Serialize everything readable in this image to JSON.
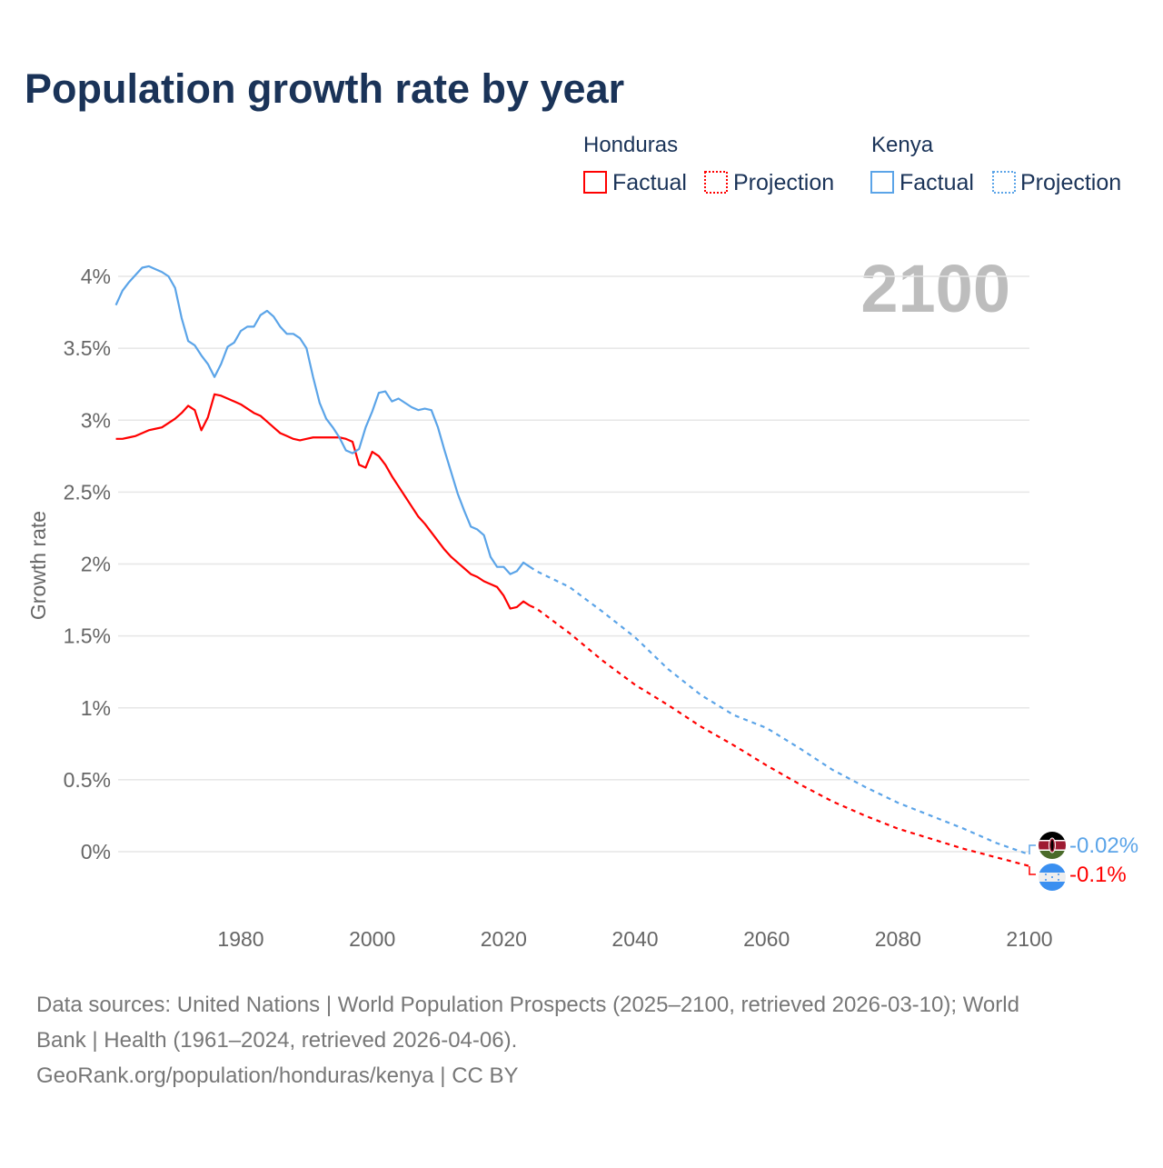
{
  "chart_data": {
    "type": "line",
    "title": "Population growth rate by year",
    "ylabel": "Growth rate",
    "xlabel": "",
    "year_badge": "2100",
    "xlim": [
      1961,
      2100
    ],
    "ylim": [
      -0.5,
      4.2
    ],
    "x_ticks": [
      1980,
      2000,
      2020,
      2040,
      2060,
      2080,
      2100
    ],
    "x_tick_labels": [
      "1980",
      "2000",
      "2020",
      "2040",
      "2060",
      "2080",
      "2100"
    ],
    "y_ticks": [
      0,
      0.5,
      1,
      1.5,
      2,
      2.5,
      3,
      3.5,
      4
    ],
    "y_tick_labels": [
      "0%",
      "0.5%",
      "1%",
      "1.5%",
      "2%",
      "2.5%",
      "3%",
      "3.5%",
      "4%"
    ],
    "grid": true,
    "legend_placement": "top-right",
    "legend": {
      "groups": [
        {
          "country": "Honduras",
          "factual": "Factual",
          "projection": "Projection"
        },
        {
          "country": "Kenya",
          "factual": "Factual",
          "projection": "Projection"
        }
      ]
    },
    "series": [
      {
        "name": "Honduras",
        "color": "#ff0000",
        "end_label": "-0.1%",
        "factual": {
          "x_start": 1961,
          "values": [
            2.87,
            2.87,
            2.88,
            2.89,
            2.91,
            2.93,
            2.94,
            2.95,
            2.98,
            3.01,
            3.05,
            3.1,
            3.07,
            2.93,
            3.02,
            3.18,
            3.17,
            3.15,
            3.13,
            3.11,
            3.08,
            3.05,
            3.03,
            2.99,
            2.95,
            2.91,
            2.89,
            2.87,
            2.86,
            2.87,
            2.88,
            2.88,
            2.88,
            2.88,
            2.88,
            2.87,
            2.85,
            2.69,
            2.67,
            2.78,
            2.75,
            2.69,
            2.61,
            2.54,
            2.47,
            2.4,
            2.33,
            2.28,
            2.22,
            2.16,
            2.1,
            2.05,
            2.01,
            1.97,
            1.93,
            1.91,
            1.88,
            1.86,
            1.84,
            1.78,
            1.69,
            1.7,
            1.74,
            1.71
          ]
        },
        "projection": {
          "x": [
            2024,
            2025,
            2030,
            2035,
            2040,
            2045,
            2050,
            2055,
            2060,
            2065,
            2070,
            2075,
            2080,
            2085,
            2090,
            2095,
            2100
          ],
          "values": [
            1.71,
            1.69,
            1.52,
            1.33,
            1.16,
            1.02,
            0.87,
            0.74,
            0.6,
            0.47,
            0.35,
            0.25,
            0.16,
            0.09,
            0.02,
            -0.04,
            -0.1
          ]
        }
      },
      {
        "name": "Kenya",
        "color": "#5ba4e8",
        "end_label": "-0.02%",
        "factual": {
          "x_start": 1961,
          "values": [
            3.8,
            3.9,
            3.96,
            4.01,
            4.06,
            4.07,
            4.05,
            4.03,
            4.0,
            3.92,
            3.71,
            3.55,
            3.52,
            3.45,
            3.39,
            3.3,
            3.39,
            3.51,
            3.54,
            3.62,
            3.65,
            3.65,
            3.73,
            3.76,
            3.72,
            3.65,
            3.6,
            3.6,
            3.57,
            3.5,
            3.3,
            3.12,
            3.01,
            2.95,
            2.88,
            2.79,
            2.77,
            2.8,
            2.95,
            3.06,
            3.19,
            3.2,
            3.13,
            3.15,
            3.12,
            3.09,
            3.07,
            3.08,
            3.07,
            2.95,
            2.79,
            2.64,
            2.49,
            2.37,
            2.26,
            2.24,
            2.2,
            2.05,
            1.98,
            1.98,
            1.93,
            1.95,
            2.01,
            1.98
          ]
        },
        "projection": {
          "x": [
            2024,
            2025,
            2030,
            2035,
            2040,
            2045,
            2050,
            2055,
            2060,
            2065,
            2070,
            2075,
            2080,
            2085,
            2090,
            2095,
            2100
          ],
          "values": [
            1.98,
            1.95,
            1.84,
            1.67,
            1.49,
            1.27,
            1.09,
            0.95,
            0.86,
            0.72,
            0.57,
            0.45,
            0.34,
            0.25,
            0.16,
            0.06,
            -0.02
          ]
        }
      }
    ]
  },
  "footer": {
    "sources_line1": "Data sources: United Nations | World Population Prospects (2025–2100, retrieved 2026-03-10); World",
    "sources_line2": "Bank | Health (1961–2024, retrieved 2026-04-06).",
    "credit": "GeoRank.org/population/honduras/kenya | CC BY"
  }
}
